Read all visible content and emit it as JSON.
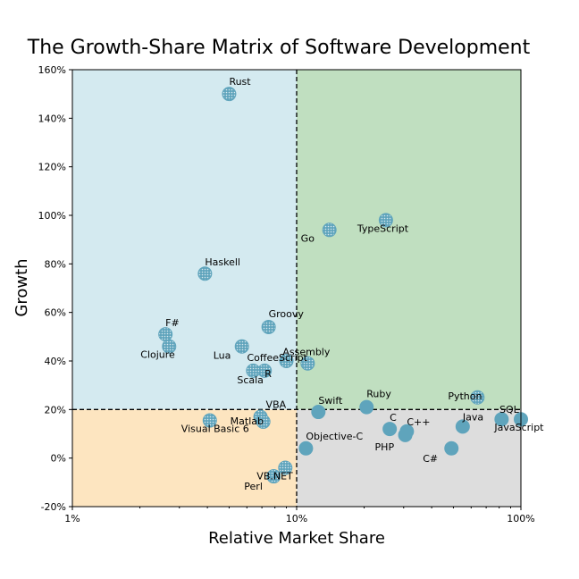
{
  "chart_data": {
    "type": "scatter",
    "title": "The Growth-Share Matrix of Software Development",
    "xlabel": "Relative Market Share",
    "ylabel": "Growth",
    "x_scale": "log",
    "x_unit": "percent",
    "y_unit": "percent",
    "xlim": [
      1,
      100
    ],
    "ylim": [
      -20,
      160
    ],
    "x_ticks": [
      {
        "value": 1,
        "label": "1%"
      },
      {
        "value": 10,
        "label": "10%"
      },
      {
        "value": 100,
        "label": "100%"
      }
    ],
    "y_ticks": [
      {
        "value": -20,
        "label": "-20%"
      },
      {
        "value": 0,
        "label": "0%"
      },
      {
        "value": 20,
        "label": "20%"
      },
      {
        "value": 40,
        "label": "40%"
      },
      {
        "value": 60,
        "label": "60%"
      },
      {
        "value": 80,
        "label": "80%"
      },
      {
        "value": 100,
        "label": "100%"
      },
      {
        "value": 120,
        "label": "120%"
      },
      {
        "value": 140,
        "label": "140%"
      },
      {
        "value": 160,
        "label": "160%"
      }
    ],
    "quadrant_split": {
      "x": 10,
      "y": 20
    },
    "quadrant_colors": {
      "high_growth_low_share": "#d4eaf0",
      "high_growth_high_share": "#c0dfc0",
      "low_growth_low_share": "#fde5c0",
      "low_growth_high_share": "#dddddd"
    },
    "marker_color": "#5fa4bc",
    "points": [
      {
        "label": "Rust",
        "x": 5.0,
        "y": 150,
        "hatched": true
      },
      {
        "label": "TypeScript",
        "x": 25,
        "y": 98,
        "hatched": true
      },
      {
        "label": "Go",
        "x": 14,
        "y": 94,
        "hatched": true
      },
      {
        "label": "Haskell",
        "x": 3.9,
        "y": 76,
        "hatched": true
      },
      {
        "label": "Groovy",
        "x": 7.5,
        "y": 54,
        "hatched": true
      },
      {
        "label": "F#",
        "x": 2.6,
        "y": 51,
        "hatched": true
      },
      {
        "label": "Clojure",
        "x": 2.7,
        "y": 46,
        "hatched": true
      },
      {
        "label": "Lua",
        "x": 5.7,
        "y": 46,
        "hatched": true
      },
      {
        "label": "Assembly",
        "x": 11.2,
        "y": 39,
        "hatched": true
      },
      {
        "label": "CoffeeScript",
        "x": 9.0,
        "y": 40,
        "hatched": true
      },
      {
        "label": "R",
        "x": 7.2,
        "y": 36,
        "hatched": true
      },
      {
        "label": "Scala",
        "x": 6.4,
        "y": 36,
        "hatched": true
      },
      {
        "label": "Ruby",
        "x": 20.5,
        "y": 21,
        "hatched": false
      },
      {
        "label": "Swift",
        "x": 12.5,
        "y": 19,
        "hatched": false
      },
      {
        "label": "Python",
        "x": 64,
        "y": 25,
        "hatched": true
      },
      {
        "label": "SQL",
        "x": 100,
        "y": 16,
        "hatched": false
      },
      {
        "label": "Java",
        "x": 55,
        "y": 13,
        "hatched": false
      },
      {
        "label": "JavaScript",
        "x": 82,
        "y": 16,
        "hatched": false
      },
      {
        "label": "C",
        "x": 26,
        "y": 12,
        "hatched": false
      },
      {
        "label": "C++",
        "x": 31,
        "y": 11,
        "hatched": false
      },
      {
        "label": "PHP",
        "x": 30.5,
        "y": 9.5,
        "hatched": false
      },
      {
        "label": "C#",
        "x": 49,
        "y": 4,
        "hatched": false
      },
      {
        "label": "Objective-C",
        "x": 11.0,
        "y": 4,
        "hatched": false
      },
      {
        "label": "VBA",
        "x": 6.9,
        "y": 17,
        "hatched": true
      },
      {
        "label": "Matlab",
        "x": 7.1,
        "y": 15,
        "hatched": true
      },
      {
        "label": "Visual Basic 6",
        "x": 4.1,
        "y": 15.5,
        "hatched": true
      },
      {
        "label": "VB.NET",
        "x": 8.9,
        "y": -4,
        "hatched": true
      },
      {
        "label": "Perl",
        "x": 7.9,
        "y": -7.5,
        "hatched": true
      }
    ]
  }
}
